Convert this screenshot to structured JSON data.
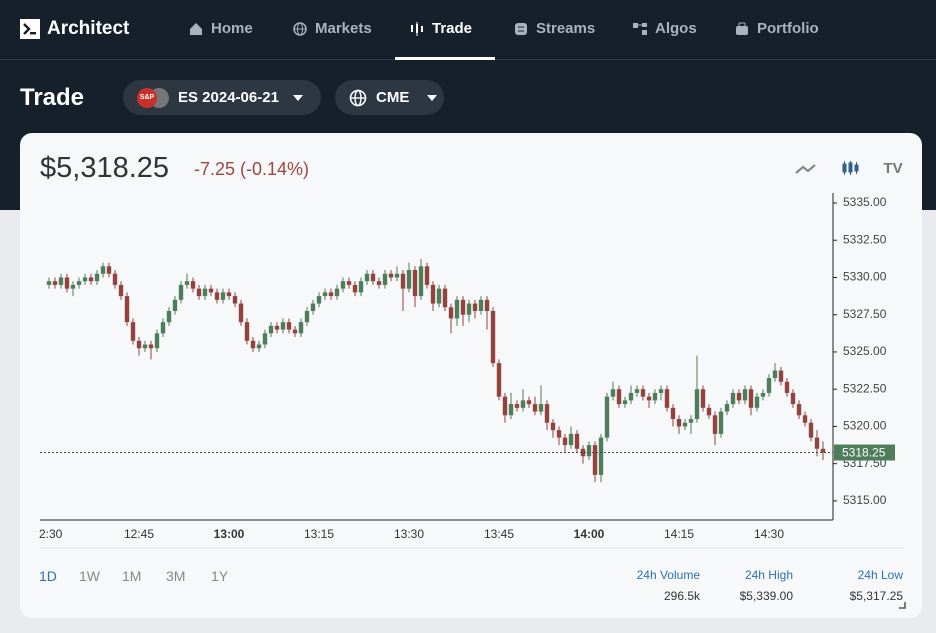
{
  "nav": {
    "brand": "Architect",
    "items": [
      "Home",
      "Markets",
      "Trade",
      "Streams",
      "Algos",
      "Portfolio"
    ],
    "active": "Trade"
  },
  "header": {
    "title": "Trade",
    "badge": "S&P",
    "instrument": "ES 2024-06-21",
    "exchange": "CME"
  },
  "quote": {
    "price": "$5,318.25",
    "change": "-7.25 (-0.14%)"
  },
  "chart_data": {
    "type": "candlestick",
    "up_color": "#4e7d5a",
    "down_color": "#93433d",
    "ylim": [
      5313.72,
      5335.67
    ],
    "yticks": [
      {
        "value": 5315,
        "label": "5315.00"
      },
      {
        "value": 5317.5,
        "label": "5317.50"
      },
      {
        "value": 5320,
        "label": "5320.00"
      },
      {
        "value": 5322.5,
        "label": "5322.50"
      },
      {
        "value": 5325,
        "label": "5325.00"
      },
      {
        "value": 5327.5,
        "label": "5327.50"
      },
      {
        "value": 5330,
        "label": "5330.00"
      },
      {
        "value": 5332.5,
        "label": "5332.50"
      },
      {
        "value": 5335,
        "label": "5335.00"
      }
    ],
    "xticks": [
      "2:30",
      "12:45",
      "13:00",
      "13:15",
      "13:30",
      "13:45",
      "14:00",
      "14:15",
      "14:30"
    ],
    "last_price": 5318.25,
    "candles": [
      [
        5329.5,
        5330,
        5329.25,
        5329.75
      ],
      [
        5329.75,
        5330,
        5329.25,
        5329.5
      ],
      [
        5329.5,
        5330.25,
        5329.25,
        5330
      ],
      [
        5330,
        5330.25,
        5329,
        5329.25
      ],
      [
        5329.25,
        5329.75,
        5328.75,
        5329.5
      ],
      [
        5329.5,
        5330,
        5329.25,
        5329.75
      ],
      [
        5329.75,
        5330.25,
        5329.5,
        5330
      ],
      [
        5330,
        5330.25,
        5329.5,
        5329.75
      ],
      [
        5329.75,
        5330.5,
        5329.5,
        5330.25
      ],
      [
        5330.25,
        5331,
        5330,
        5330.75
      ],
      [
        5330.75,
        5331,
        5330,
        5330.25
      ],
      [
        5330.25,
        5330.5,
        5329.25,
        5329.5
      ],
      [
        5329.5,
        5329.75,
        5328.5,
        5328.75
      ],
      [
        5328.75,
        5329,
        5326.75,
        5327
      ],
      [
        5327,
        5327.25,
        5325.5,
        5325.75
      ],
      [
        5325.75,
        5326,
        5324.75,
        5325.25
      ],
      [
        5325.25,
        5325.75,
        5325,
        5325.5
      ],
      [
        5325.5,
        5325.75,
        5324.5,
        5325.25
      ],
      [
        5325.25,
        5326.5,
        5325,
        5326.25
      ],
      [
        5326.25,
        5327.25,
        5326,
        5327
      ],
      [
        5327,
        5328,
        5326.75,
        5327.75
      ],
      [
        5327.75,
        5328.75,
        5327.5,
        5328.5
      ],
      [
        5328.5,
        5329.75,
        5328.25,
        5329.5
      ],
      [
        5329.5,
        5330.25,
        5329.25,
        5329.75
      ],
      [
        5329.75,
        5330,
        5329,
        5329.25
      ],
      [
        5329.25,
        5329.5,
        5328.5,
        5328.75
      ],
      [
        5328.75,
        5329.5,
        5328.5,
        5329.25
      ],
      [
        5329.25,
        5329.5,
        5328.75,
        5329
      ],
      [
        5329,
        5329.25,
        5328.25,
        5328.5
      ],
      [
        5328.5,
        5329.25,
        5328.25,
        5329
      ],
      [
        5329,
        5329.25,
        5328.5,
        5328.75
      ],
      [
        5328.75,
        5329,
        5328,
        5328.25
      ],
      [
        5328.25,
        5328.5,
        5326.75,
        5327
      ],
      [
        5327,
        5327.25,
        5325.5,
        5325.75
      ],
      [
        5325.75,
        5326,
        5325,
        5325.25
      ],
      [
        5325.25,
        5325.75,
        5325,
        5325.5
      ],
      [
        5325.5,
        5326.5,
        5325.25,
        5326.25
      ],
      [
        5326.25,
        5327,
        5326,
        5326.75
      ],
      [
        5326.75,
        5327,
        5326.25,
        5326.5
      ],
      [
        5326.5,
        5327.25,
        5326.25,
        5327
      ],
      [
        5327,
        5327.25,
        5326.25,
        5326.5
      ],
      [
        5326.5,
        5326.75,
        5326,
        5326.25
      ],
      [
        5326.25,
        5327.25,
        5326,
        5327
      ],
      [
        5327,
        5328,
        5326.75,
        5327.75
      ],
      [
        5327.75,
        5328.5,
        5327.5,
        5328.25
      ],
      [
        5328.25,
        5329,
        5328,
        5328.75
      ],
      [
        5328.75,
        5329.25,
        5328.5,
        5329
      ],
      [
        5329,
        5329.25,
        5328.5,
        5328.75
      ],
      [
        5328.75,
        5329.5,
        5328.5,
        5329.25
      ],
      [
        5329.25,
        5330,
        5329,
        5329.75
      ],
      [
        5329.75,
        5330,
        5329.25,
        5329.5
      ],
      [
        5329.5,
        5329.75,
        5328.75,
        5329
      ],
      [
        5329,
        5330,
        5328.75,
        5329.75
      ],
      [
        5329.75,
        5330.5,
        5329.5,
        5330.25
      ],
      [
        5330.25,
        5330.5,
        5329.5,
        5329.75
      ],
      [
        5329.75,
        5330,
        5329.25,
        5329.5
      ],
      [
        5329.5,
        5330.5,
        5329.25,
        5330.25
      ],
      [
        5330.25,
        5330.5,
        5329.75,
        5330
      ],
      [
        5330,
        5330.75,
        5329.75,
        5330.25
      ],
      [
        5330.25,
        5330.5,
        5327.75,
        5329.25
      ],
      [
        5329.25,
        5331,
        5329,
        5330.5
      ],
      [
        5330.5,
        5330.75,
        5328,
        5328.75
      ],
      [
        5328.75,
        5331.25,
        5328.5,
        5330.75
      ],
      [
        5330.75,
        5331,
        5329.25,
        5329.5
      ],
      [
        5329.5,
        5329.75,
        5327.75,
        5328.25
      ],
      [
        5328.25,
        5329.5,
        5328,
        5329.25
      ],
      [
        5329.25,
        5329.5,
        5327.75,
        5328
      ],
      [
        5328,
        5328.25,
        5326.25,
        5327.25
      ],
      [
        5327.25,
        5328.75,
        5326.75,
        5328.5
      ],
      [
        5328.5,
        5328.75,
        5326.75,
        5327.5
      ],
      [
        5327.5,
        5328.5,
        5327,
        5328.25
      ],
      [
        5328.25,
        5328.5,
        5327.25,
        5327.75
      ],
      [
        5327.75,
        5328.75,
        5327.5,
        5328.5
      ],
      [
        5328.5,
        5328.75,
        5326.5,
        5327.75
      ],
      [
        5327.75,
        5328,
        5324,
        5324.25
      ],
      [
        5324.25,
        5324.5,
        5321.75,
        5322
      ],
      [
        5322,
        5322.25,
        5320.25,
        5320.75
      ],
      [
        5320.75,
        5322.25,
        5320.5,
        5321.5
      ],
      [
        5321.5,
        5321.75,
        5321,
        5321.25
      ],
      [
        5321.25,
        5322.5,
        5321,
        5321.75
      ],
      [
        5321.75,
        5322,
        5321.25,
        5321.5
      ],
      [
        5321.5,
        5322,
        5320.75,
        5321
      ],
      [
        5321,
        5322.75,
        5320.75,
        5321.5
      ],
      [
        5321.5,
        5321.75,
        5319.75,
        5320.25
      ],
      [
        5320.25,
        5320.5,
        5319.25,
        5319.75
      ],
      [
        5319.75,
        5320,
        5318.75,
        5319.25
      ],
      [
        5319.25,
        5319.5,
        5318.25,
        5318.75
      ],
      [
        5318.75,
        5320,
        5318.5,
        5319.5
      ],
      [
        5319.5,
        5319.75,
        5318.25,
        5318.5
      ],
      [
        5318.5,
        5318.75,
        5317.5,
        5318
      ],
      [
        5318,
        5319,
        5317.75,
        5318.75
      ],
      [
        5318.75,
        5319,
        5316.25,
        5316.75
      ],
      [
        5316.75,
        5319.5,
        5316.25,
        5319.25
      ],
      [
        5319.25,
        5322.25,
        5319,
        5322
      ],
      [
        5322,
        5323,
        5321.75,
        5322.5
      ],
      [
        5322.5,
        5322.75,
        5321.25,
        5321.5
      ],
      [
        5321.5,
        5322,
        5321.25,
        5321.75
      ],
      [
        5321.75,
        5322.75,
        5321.5,
        5322.25
      ],
      [
        5322.25,
        5322.75,
        5322,
        5322.5
      ],
      [
        5322.5,
        5322.75,
        5321.75,
        5322
      ],
      [
        5322,
        5322.25,
        5321.25,
        5321.75
      ],
      [
        5321.75,
        5322.5,
        5321.5,
        5322.25
      ],
      [
        5322.25,
        5322.75,
        5321.75,
        5322.5
      ],
      [
        5322.5,
        5322.75,
        5321,
        5321.25
      ],
      [
        5321.25,
        5321.5,
        5320,
        5320.5
      ],
      [
        5320.5,
        5320.75,
        5319.5,
        5320
      ],
      [
        5320,
        5320.5,
        5319.75,
        5320.25
      ],
      [
        5320.25,
        5320.75,
        5319.5,
        5320.5
      ],
      [
        5320.5,
        5324.75,
        5320.25,
        5322.5
      ],
      [
        5322.5,
        5322.75,
        5321,
        5321.25
      ],
      [
        5321.25,
        5321.5,
        5320.5,
        5320.75
      ],
      [
        5320.75,
        5321,
        5318.75,
        5319.5
      ],
      [
        5319.5,
        5321.25,
        5319.25,
        5321
      ],
      [
        5321,
        5321.75,
        5320.75,
        5321.5
      ],
      [
        5321.5,
        5322.5,
        5321.25,
        5322.25
      ],
      [
        5322.25,
        5322.5,
        5321.5,
        5321.75
      ],
      [
        5321.75,
        5322.75,
        5321.5,
        5322.5
      ],
      [
        5322.5,
        5322.75,
        5320.75,
        5321.25
      ],
      [
        5321.25,
        5322.25,
        5321,
        5322
      ],
      [
        5322,
        5322.5,
        5321.75,
        5322.25
      ],
      [
        5322.25,
        5323.5,
        5322,
        5323.25
      ],
      [
        5323.25,
        5324.25,
        5323,
        5323.75
      ],
      [
        5323.75,
        5324,
        5322.75,
        5323
      ],
      [
        5323,
        5323.25,
        5322,
        5322.25
      ],
      [
        5322.25,
        5322.5,
        5321.25,
        5321.5
      ],
      [
        5321.5,
        5321.75,
        5320.5,
        5320.75
      ],
      [
        5320.75,
        5321,
        5320,
        5320.25
      ],
      [
        5320.25,
        5320.5,
        5319,
        5319.25
      ],
      [
        5319.25,
        5319.75,
        5318,
        5318.5
      ],
      [
        5318.5,
        5319,
        5317.75,
        5318.25
      ]
    ]
  },
  "timeframes": [
    "1D",
    "1W",
    "1M",
    "3M",
    "1Y"
  ],
  "active_timeframe": "1D",
  "stats": [
    {
      "label": "24h Volume",
      "value": "296.5k"
    },
    {
      "label": "24h High",
      "value": "$5,339.00"
    },
    {
      "label": "24h Low",
      "value": "$5,317.25"
    }
  ]
}
